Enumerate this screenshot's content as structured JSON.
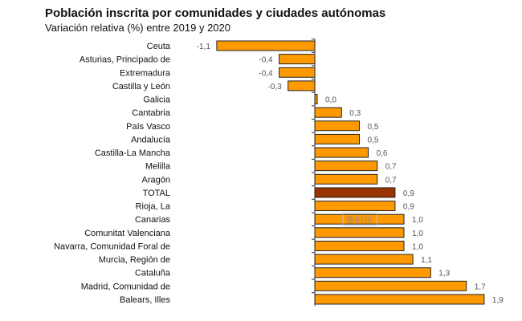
{
  "chart_data": {
    "type": "bar",
    "orientation": "horizontal",
    "title": "Población inscrita por comunidades y ciudades autónomas",
    "subtitle": "Variación relativa (%) entre 2019 y 2020",
    "categories": [
      "Ceuta",
      "Asturias, Principado de",
      "Extremadura",
      "Castilla y León",
      "Galicia",
      "Cantabria",
      "País Vasco",
      "Andalucía",
      "Castilla-La Mancha",
      "Melilla",
      "Aragón",
      "TOTAL",
      "Rioja, La",
      "Canarias",
      "Comunitat Valenciana",
      "Navarra, Comunidad Foral de",
      "Murcia, Región de",
      "Cataluña",
      "Madrid, Comunidad de",
      "Balears, Illes"
    ],
    "values": [
      -1.1,
      -0.4,
      -0.4,
      -0.3,
      0.0,
      0.3,
      0.5,
      0.5,
      0.6,
      0.7,
      0.7,
      0.9,
      0.9,
      1.0,
      1.0,
      1.0,
      1.1,
      1.3,
      1.7,
      1.9
    ],
    "value_labels": [
      "-1,1",
      "-0,4",
      "-0,4",
      "-0,3",
      "0,0",
      "0,3",
      "0,5",
      "0,5",
      "0,6",
      "0,7",
      "0,7",
      "0,9",
      "0,9",
      "1,0",
      "1,0",
      "1,0",
      "1,1",
      "1,3",
      "1,7",
      "1,9"
    ],
    "highlight_category": "TOTAL",
    "colors": {
      "bar": "#FF9900",
      "highlight": "#993300",
      "border": "#222222",
      "value_text": "#555555"
    },
    "grid": false,
    "legend": "none",
    "xlim": [
      -1.1,
      1.9
    ]
  },
  "watermark": "EDZ"
}
